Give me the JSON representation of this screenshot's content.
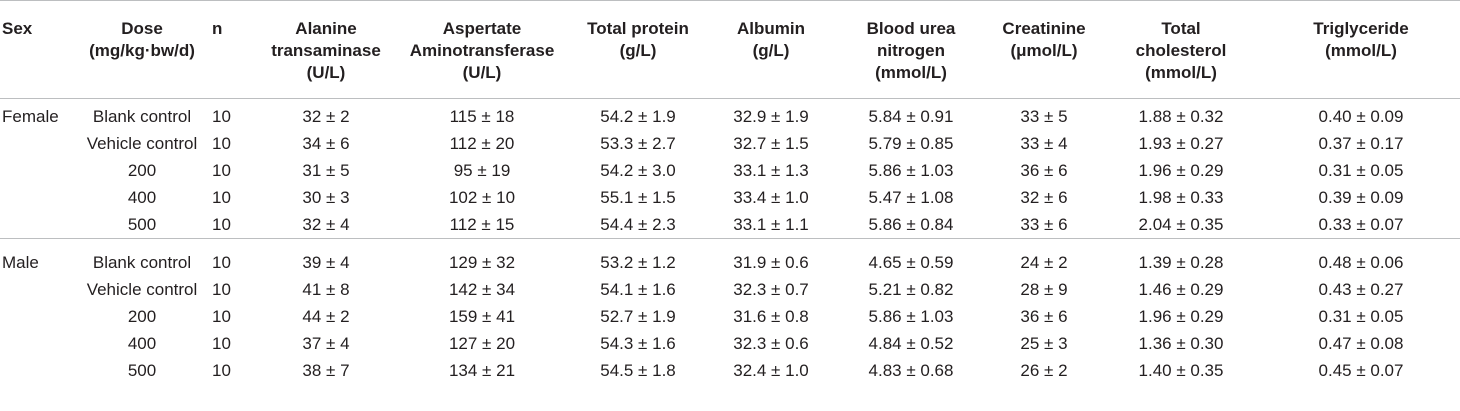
{
  "columns": [
    "Sex",
    "Dose\n(mg/kg·bw/d)",
    "n",
    "Alanine\ntransaminase\n(U/L)",
    "Aspertate\nAminotransferase\n(U/L)",
    "Total protein\n(g/L)",
    "Albumin\n(g/L)",
    "Blood urea\nnitrogen\n(mmol/L)",
    "Creatinine\n(μmol/L)",
    "Total\ncholesterol\n(mmol/L)",
    "Triglyceride\n(mmol/L)"
  ],
  "groups": [
    {
      "sex": "Female",
      "rows": [
        [
          "Blank control",
          "10",
          "32 ± 2",
          "115 ± 18",
          "54.2 ± 1.9",
          "32.9 ± 1.9",
          "5.84 ± 0.91",
          "33 ± 5",
          "1.88 ± 0.32",
          "0.40 ± 0.09"
        ],
        [
          "Vehicle control",
          "10",
          "34 ± 6",
          "112 ± 20",
          "53.3 ± 2.7",
          "32.7 ± 1.5",
          "5.79 ± 0.85",
          "33 ± 4",
          "1.93 ± 0.27",
          "0.37 ± 0.17"
        ],
        [
          "200",
          "10",
          "31 ± 5",
          "95 ± 19",
          "54.2 ± 3.0",
          "33.1 ± 1.3",
          "5.86 ± 1.03",
          "36 ± 6",
          "1.96 ± 0.29",
          "0.31 ± 0.05"
        ],
        [
          "400",
          "10",
          "30 ± 3",
          "102 ± 10",
          "55.1 ± 1.5",
          "33.4 ± 1.0",
          "5.47 ± 1.08",
          "32 ± 6",
          "1.98 ± 0.33",
          "0.39 ± 0.09"
        ],
        [
          "500",
          "10",
          "32 ± 4",
          "112 ± 15",
          "54.4 ± 2.3",
          "33.1 ± 1.1",
          "5.86 ± 0.84",
          "33 ± 6",
          "2.04 ± 0.35",
          "0.33 ± 0.07"
        ]
      ]
    },
    {
      "sex": "Male",
      "rows": [
        [
          "Blank control",
          "10",
          "39 ± 4",
          "129 ± 32",
          "53.2 ± 1.2",
          "31.9 ± 0.6",
          "4.65 ± 0.59",
          "24 ± 2",
          "1.39 ± 0.28",
          "0.48 ± 0.06"
        ],
        [
          "Vehicle control",
          "10",
          "41 ± 8",
          "142 ± 34",
          "54.1 ± 1.6",
          "32.3 ± 0.7",
          "5.21 ± 0.82",
          "28 ± 9",
          "1.46 ± 0.29",
          "0.43 ± 0.27"
        ],
        [
          "200",
          "10",
          "44 ± 2",
          "159 ± 41",
          "52.7 ± 1.9",
          "31.6 ± 0.8",
          "5.86 ± 1.03",
          "36 ± 6",
          "1.96 ± 0.29",
          "0.31 ± 0.05"
        ],
        [
          "400",
          "10",
          "37 ± 4",
          "127 ± 20",
          "54.3 ± 1.6",
          "32.3 ± 0.6",
          "4.84 ± 0.52",
          "25 ± 3",
          "1.36 ± 0.30",
          "0.47 ± 0.08"
        ],
        [
          "500",
          "10",
          "38 ± 7",
          "134 ± 21",
          "54.5 ± 1.8",
          "32.4 ± 1.0",
          "4.83 ± 0.68",
          "26 ± 2",
          "1.40 ± 0.35",
          "0.45 ± 0.07"
        ]
      ]
    }
  ]
}
